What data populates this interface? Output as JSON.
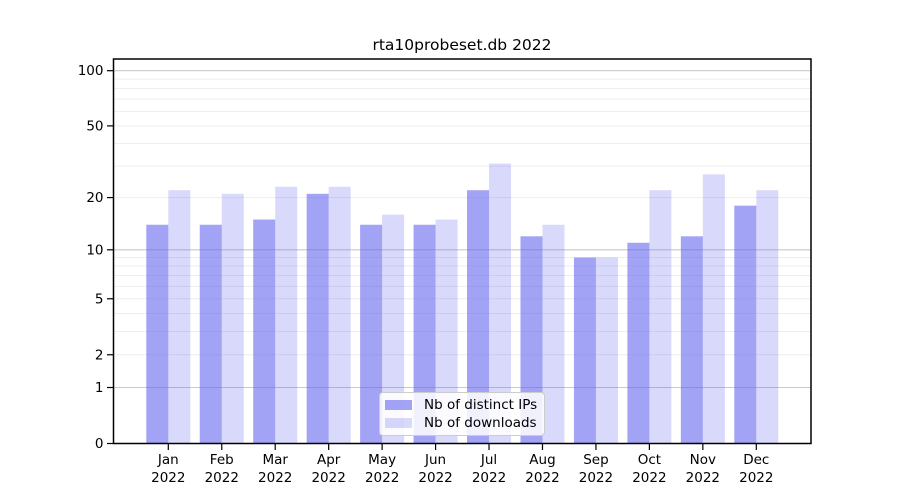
{
  "chart_data": {
    "type": "bar",
    "title": "rta10probeset.db 2022",
    "year": "2022",
    "categories": [
      "Jan",
      "Feb",
      "Mar",
      "Apr",
      "May",
      "Jun",
      "Jul",
      "Aug",
      "Sep",
      "Oct",
      "Nov",
      "Dec"
    ],
    "series": [
      {
        "name": "Nb of distinct IPs",
        "color": "rgba(102,102,238,0.6)",
        "values": [
          14,
          14,
          15,
          21,
          14,
          14,
          22,
          12,
          9,
          11,
          12,
          18
        ]
      },
      {
        "name": "Nb of downloads",
        "color": "rgba(102,102,238,0.25)",
        "values": [
          22,
          21,
          23,
          23,
          16,
          15,
          31,
          14,
          9,
          22,
          27,
          22
        ]
      }
    ],
    "yscale": "log1p",
    "yticks": [
      0,
      1,
      2,
      5,
      10,
      20,
      50,
      100
    ],
    "grid_values": [
      1,
      2,
      3,
      4,
      5,
      6,
      7,
      8,
      9,
      10,
      20,
      30,
      40,
      50,
      60,
      70,
      80,
      90,
      100
    ],
    "grid_major_values": [
      1,
      10,
      100
    ],
    "ylim": [
      0,
      115
    ],
    "xlabel": "",
    "ylabel": "",
    "legend_position": "bottom-center",
    "grid": "on"
  },
  "colors": {
    "background": "#ffffff",
    "bar_base": "#6666ee",
    "grid_major": "#c9c9c9",
    "grid_minor": "#ededed",
    "axis": "#000000",
    "legend_border": "#cccccc",
    "text": "#000000"
  }
}
